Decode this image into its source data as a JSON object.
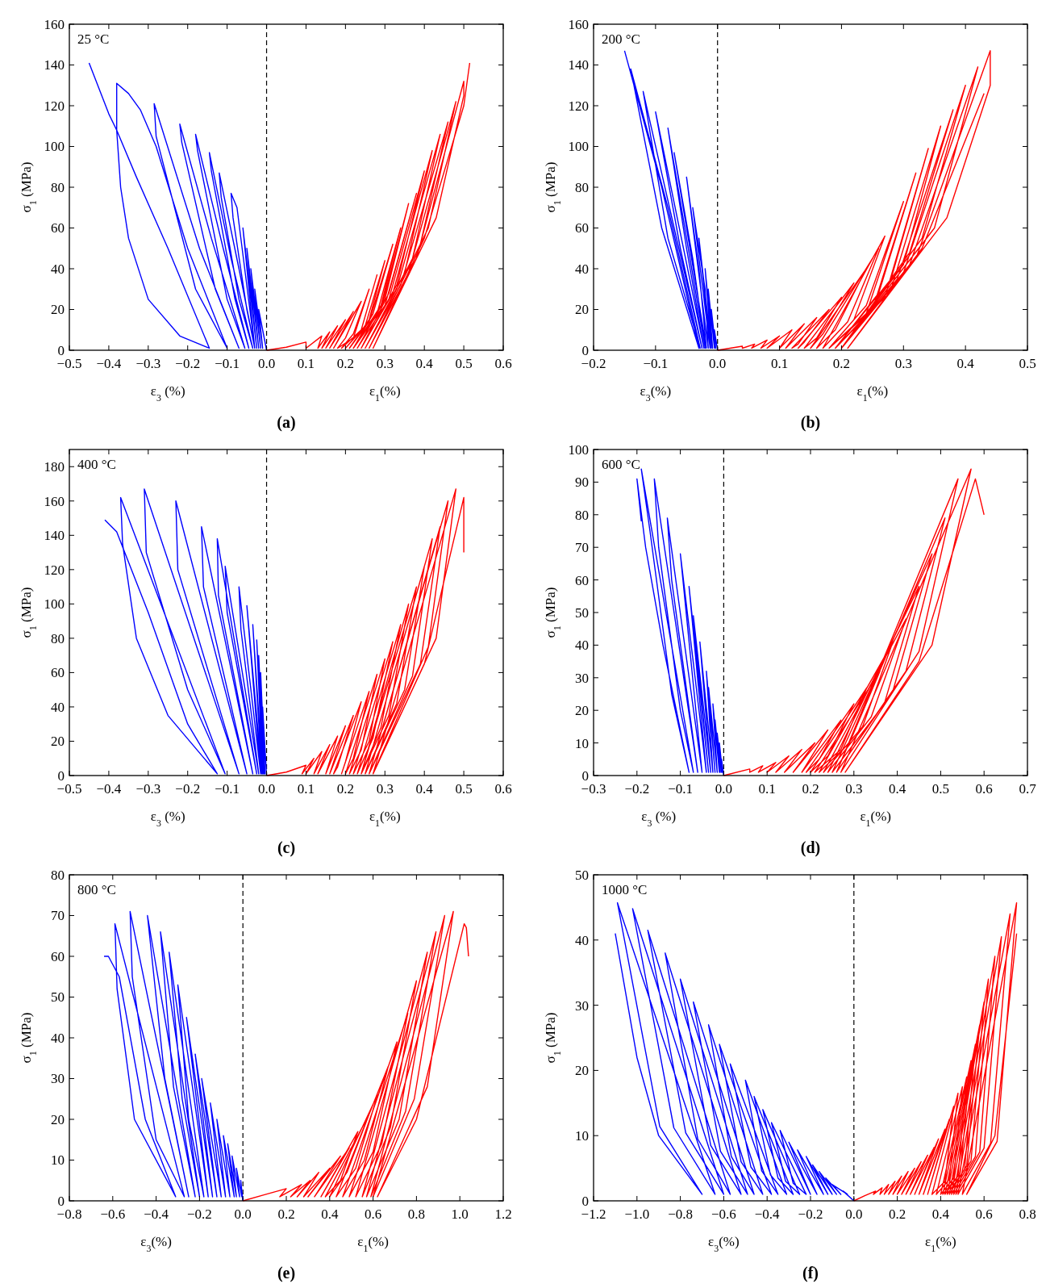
{
  "chart_data": [
    {
      "type": "line",
      "ylabel": "σ$_{1}$ (MPa)",
      "xlabel": "ε$_{1}$(%)",
      "annotations": [
        "25 °C",
        "ε$_{3}$ (%)",
        "(a)"
      ],
      "xlim": [
        -0.5,
        0.6
      ],
      "xticks": [
        {
          "value": -0.5,
          "label": "−0.5"
        },
        {
          "value": -0.4,
          "label": "−0.4"
        },
        {
          "value": -0.3,
          "label": "−0.3"
        },
        {
          "value": -0.2,
          "label": "−0.2"
        },
        {
          "value": -0.1,
          "label": "−0.1"
        },
        {
          "value": 0,
          "label": "0.0"
        },
        0.1,
        0.2,
        0.3,
        0.4,
        0.5,
        0.6
      ],
      "ylim": [
        0,
        160
      ],
      "yticks": [
        0,
        20,
        40,
        60,
        80,
        100,
        120,
        140,
        160
      ],
      "ref_lines": [
        {
          "axis": "x",
          "value": 0,
          "color": "#000000",
          "line_style": "dashed"
        }
      ],
      "series": [
        {
          "color": "#0000ff",
          "x": [
            0,
            -0.01,
            -0.02,
            -0.01,
            -0.03,
            -0.015,
            -0.04,
            -0.02,
            -0.05,
            -0.025,
            -0.06,
            -0.03,
            -0.075,
            -0.09,
            -0.085,
            -0.05,
            -0.03,
            -0.07,
            -0.12,
            -0.115,
            -0.07,
            -0.035,
            -0.09,
            -0.145,
            -0.14,
            -0.08,
            -0.045,
            -0.11,
            -0.18,
            -0.175,
            -0.1,
            -0.055,
            -0.14,
            -0.22,
            -0.215,
            -0.13,
            -0.07,
            -0.17,
            -0.285,
            -0.28,
            -0.18,
            -0.1,
            -0.2,
            -0.28,
            -0.32,
            -0.35,
            -0.38,
            -0.38,
            -0.37,
            -0.35,
            -0.3,
            -0.22,
            -0.145,
            -0.25,
            -0.33,
            -0.38,
            -0.4,
            -0.45
          ],
          "values": [
            0,
            10,
            20,
            1,
            30,
            1,
            40,
            1,
            50,
            1,
            60,
            1,
            70,
            77,
            65,
            20,
            1,
            40,
            87,
            75,
            25,
            1,
            45,
            97,
            88,
            25,
            1,
            50,
            106,
            98,
            25,
            1,
            55,
            111,
            102,
            30,
            1,
            50,
            121,
            105,
            30,
            1,
            50,
            100,
            118,
            126,
            131,
            108,
            80,
            55,
            25,
            7,
            1,
            50,
            85,
            108,
            116,
            141
          ]
        },
        {
          "color": "#ff0000",
          "x": [
            0,
            0.05,
            0.1,
            0.1,
            0.14,
            0.13,
            0.16,
            0.14,
            0.18,
            0.15,
            0.2,
            0.16,
            0.22,
            0.17,
            0.24,
            0.2,
            0.18,
            0.22,
            0.26,
            0.22,
            0.19,
            0.24,
            0.28,
            0.24,
            0.2,
            0.25,
            0.3,
            0.26,
            0.21,
            0.26,
            0.32,
            0.27,
            0.22,
            0.28,
            0.34,
            0.29,
            0.22,
            0.29,
            0.36,
            0.3,
            0.23,
            0.3,
            0.38,
            0.31,
            0.24,
            0.31,
            0.4,
            0.33,
            0.24,
            0.32,
            0.42,
            0.35,
            0.25,
            0.33,
            0.44,
            0.37,
            0.25,
            0.34,
            0.46,
            0.39,
            0.26,
            0.36,
            0.48,
            0.41,
            0.26,
            0.38,
            0.5,
            0.5,
            0.43,
            0.27,
            0.4,
            0.5,
            0.515
          ],
          "values": [
            0,
            1.5,
            4,
            1,
            7,
            1,
            9,
            1,
            12,
            1,
            15,
            1,
            19,
            1,
            24,
            6,
            1,
            6,
            30,
            8,
            1,
            10,
            37,
            10,
            1,
            12,
            44,
            15,
            1,
            14,
            52,
            18,
            1,
            18,
            60,
            22,
            1,
            20,
            72,
            25,
            1,
            22,
            77,
            28,
            1,
            25,
            88,
            32,
            1,
            28,
            98,
            38,
            1,
            30,
            106,
            45,
            1,
            32,
            112,
            52,
            1,
            38,
            122,
            60,
            1,
            45,
            132,
            125,
            65,
            1,
            55,
            120,
            141
          ]
        }
      ]
    },
    {
      "type": "line",
      "ylabel": "σ$_{1}$ (MPa)",
      "xlabel": "ε$_{1}$(%)",
      "annotations": [
        "200 °C",
        "ε$_{3}$(%)",
        "(b)"
      ],
      "xlim": [
        -0.2,
        0.5
      ],
      "xticks": [
        {
          "value": -0.2,
          "label": "−0.2"
        },
        {
          "value": -0.1,
          "label": "−0.1"
        },
        {
          "value": 0,
          "label": "0.0"
        },
        0.1,
        0.2,
        0.3,
        0.4,
        0.5
      ],
      "ylim": [
        0,
        160
      ],
      "yticks": [
        0,
        20,
        40,
        60,
        80,
        100,
        120,
        140,
        160
      ],
      "ref_lines": [
        {
          "axis": "x",
          "value": 0,
          "color": "#000000",
          "line_style": "dashed"
        }
      ],
      "series": [
        {
          "color": "#0000ff",
          "x": [
            0,
            -0.005,
            -0.003,
            -0.01,
            -0.005,
            -0.015,
            -0.008,
            -0.02,
            -0.01,
            -0.03,
            -0.012,
            -0.04,
            -0.02,
            -0.015,
            -0.05,
            -0.03,
            -0.018,
            -0.07,
            -0.04,
            -0.02,
            -0.08,
            -0.05,
            -0.022,
            -0.1,
            -0.06,
            -0.025,
            -0.07,
            -0.12,
            -0.08,
            -0.028,
            -0.08,
            -0.14,
            -0.09,
            -0.03,
            -0.09,
            -0.15
          ],
          "values": [
            0,
            10,
            1,
            20,
            1,
            30,
            1,
            40,
            1,
            55,
            1,
            70,
            30,
            1,
            85,
            40,
            1,
            97,
            45,
            1,
            109,
            50,
            1,
            117,
            50,
            1,
            60,
            127,
            55,
            1,
            70,
            138,
            60,
            1,
            80,
            147
          ]
        },
        {
          "color": "#ff0000",
          "x": [
            0,
            0.04,
            0.04,
            0.06,
            0.055,
            0.08,
            0.07,
            0.1,
            0.08,
            0.12,
            0.1,
            0.14,
            0.11,
            0.16,
            0.13,
            0.12,
            0.18,
            0.14,
            0.13,
            0.2,
            0.16,
            0.14,
            0.22,
            0.17,
            0.15,
            0.24,
            0.19,
            0.16,
            0.26,
            0.21,
            0.17,
            0.27,
            0.22,
            0.18,
            0.24,
            0.3,
            0.24,
            0.18,
            0.25,
            0.32,
            0.26,
            0.19,
            0.27,
            0.34,
            0.28,
            0.19,
            0.28,
            0.36,
            0.3,
            0.2,
            0.29,
            0.38,
            0.31,
            0.2,
            0.3,
            0.4,
            0.33,
            0.2,
            0.31,
            0.42,
            0.35,
            0.2,
            0.32,
            0.44,
            0.44,
            0.37,
            0.21,
            0.33,
            0.43
          ],
          "values": [
            0,
            2,
            1,
            3,
            1,
            5,
            1,
            7,
            1,
            10,
            1,
            13,
            1,
            16,
            3,
            1,
            20,
            4,
            1,
            26,
            6,
            1,
            33,
            8,
            1,
            40,
            10,
            1,
            50,
            14,
            1,
            56,
            15,
            1,
            18,
            73,
            22,
            1,
            20,
            87,
            28,
            1,
            26,
            99,
            35,
            1,
            30,
            110,
            42,
            1,
            35,
            118,
            48,
            1,
            38,
            130,
            55,
            1,
            42,
            139,
            60,
            1,
            45,
            147,
            130,
            65,
            1,
            50,
            126
          ]
        }
      ]
    },
    {
      "type": "line",
      "ylabel": "σ$_{1}$ (MPa)",
      "xlabel": "ε$_{1}$(%)",
      "annotations": [
        "400 °C",
        "ε$_{3}$ (%)",
        "(c)"
      ],
      "xlim": [
        -0.5,
        0.6
      ],
      "xticks": [
        {
          "value": -0.5,
          "label": "−0.5"
        },
        {
          "value": -0.4,
          "label": "−0.4"
        },
        {
          "value": -0.3,
          "label": "−0.3"
        },
        {
          "value": -0.2,
          "label": "−0.2"
        },
        {
          "value": -0.1,
          "label": "−0.1"
        },
        {
          "value": 0,
          "label": "0.0"
        },
        0.1,
        0.2,
        0.3,
        0.4,
        0.5,
        0.6
      ],
      "ylim": [
        0,
        190
      ],
      "yticks": [
        0,
        20,
        40,
        60,
        80,
        100,
        120,
        140,
        160,
        180
      ],
      "ref_lines": [
        {
          "axis": "x",
          "value": 0,
          "color": "#000000",
          "line_style": "dashed"
        }
      ],
      "series": [
        {
          "color": "#0000ff",
          "x": [
            0,
            -0.005,
            -0.01,
            -0.004,
            -0.015,
            -0.006,
            -0.02,
            -0.008,
            -0.025,
            -0.01,
            -0.035,
            -0.012,
            -0.05,
            -0.015,
            -0.07,
            -0.065,
            -0.02,
            -0.105,
            -0.1,
            -0.025,
            -0.125,
            -0.122,
            -0.035,
            -0.165,
            -0.16,
            -0.05,
            -0.23,
            -0.225,
            -0.07,
            -0.31,
            -0.305,
            -0.2,
            -0.105,
            -0.37,
            -0.365,
            -0.33,
            -0.25,
            -0.125,
            -0.2,
            -0.3,
            -0.38,
            -0.41
          ],
          "values": [
            0,
            20,
            40,
            1,
            60,
            1,
            70,
            1,
            79,
            1,
            88,
            1,
            99,
            1,
            110,
            85,
            1,
            122,
            95,
            1,
            138,
            105,
            1,
            145,
            110,
            1,
            160,
            120,
            1,
            167,
            130,
            50,
            1,
            162,
            135,
            80,
            35,
            1,
            30,
            95,
            142,
            149
          ]
        },
        {
          "color": "#ff0000",
          "x": [
            0,
            0.05,
            0.1,
            0.09,
            0.12,
            0.1,
            0.14,
            0.12,
            0.16,
            0.13,
            0.18,
            0.15,
            0.2,
            0.16,
            0.22,
            0.18,
            0.17,
            0.24,
            0.2,
            0.19,
            0.26,
            0.22,
            0.2,
            0.28,
            0.24,
            0.21,
            0.3,
            0.26,
            0.22,
            0.32,
            0.27,
            0.23,
            0.34,
            0.29,
            0.24,
            0.36,
            0.31,
            0.24,
            0.38,
            0.33,
            0.25,
            0.4,
            0.35,
            0.25,
            0.42,
            0.37,
            0.26,
            0.44,
            0.39,
            0.26,
            0.46,
            0.41,
            0.27,
            0.48,
            0.43,
            0.27,
            0.4,
            0.5,
            0.5
          ],
          "values": [
            0,
            2,
            6,
            1,
            10,
            1,
            14,
            1,
            18,
            1,
            23,
            1,
            29,
            1,
            35,
            5,
            1,
            43,
            8,
            1,
            49,
            10,
            1,
            59,
            15,
            1,
            68,
            20,
            1,
            78,
            22,
            1,
            88,
            28,
            1,
            100,
            35,
            1,
            110,
            42,
            1,
            122,
            50,
            1,
            138,
            58,
            1,
            145,
            65,
            1,
            160,
            75,
            1,
            167,
            80,
            1,
            65,
            162,
            130
          ]
        }
      ]
    },
    {
      "type": "line",
      "ylabel": "σ$_{1}$ (MPa)",
      "xlabel": "ε$_{1}$(%)",
      "annotations": [
        "600 °C",
        "ε$_{3}$ (%)",
        "(d)"
      ],
      "xlim": [
        -0.3,
        0.7
      ],
      "xticks": [
        {
          "value": -0.3,
          "label": "−0.3"
        },
        {
          "value": -0.2,
          "label": "−0.2"
        },
        {
          "value": -0.1,
          "label": "−0.1"
        },
        {
          "value": 0,
          "label": "0.0"
        },
        0.1,
        0.2,
        0.3,
        0.4,
        0.5,
        0.6,
        0.7
      ],
      "ylim": [
        0,
        100
      ],
      "yticks": [
        0,
        10,
        20,
        30,
        40,
        50,
        60,
        70,
        80,
        90,
        100
      ],
      "ref_lines": [
        {
          "axis": "x",
          "value": 0,
          "color": "#000000",
          "line_style": "dashed"
        }
      ],
      "series": [
        {
          "color": "#0000ff",
          "x": [
            0,
            -0.005,
            -0.003,
            -0.01,
            -0.005,
            -0.015,
            -0.008,
            -0.02,
            -0.01,
            -0.025,
            -0.015,
            -0.035,
            -0.02,
            -0.04,
            -0.025,
            -0.055,
            -0.03,
            -0.07,
            -0.035,
            -0.08,
            -0.04,
            -0.1,
            -0.05,
            -0.13,
            -0.12,
            -0.06,
            -0.16,
            -0.15,
            -0.1,
            -0.07,
            -0.19,
            -0.17,
            -0.12,
            -0.08,
            -0.14,
            -0.18,
            -0.2,
            -0.19
          ],
          "values": [
            0,
            5,
            1,
            10,
            1,
            13,
            1,
            17,
            1,
            22,
            1,
            27,
            1,
            32,
            1,
            41,
            1,
            49,
            1,
            58,
            1,
            68,
            1,
            79,
            60,
            1,
            91,
            70,
            20,
            1,
            94,
            75,
            25,
            1,
            40,
            70,
            91,
            78
          ]
        },
        {
          "color": "#ff0000",
          "x": [
            0,
            0.06,
            0.06,
            0.09,
            0.08,
            0.12,
            0.1,
            0.15,
            0.12,
            0.18,
            0.14,
            0.21,
            0.16,
            0.24,
            0.18,
            0.27,
            0.22,
            0.19,
            0.3,
            0.24,
            0.2,
            0.33,
            0.27,
            0.21,
            0.36,
            0.29,
            0.22,
            0.39,
            0.32,
            0.23,
            0.42,
            0.34,
            0.24,
            0.45,
            0.37,
            0.25,
            0.48,
            0.39,
            0.26,
            0.51,
            0.42,
            0.26,
            0.54,
            0.45,
            0.27,
            0.57,
            0.48,
            0.28,
            0.45,
            0.58,
            0.6
          ],
          "values": [
            0,
            2,
            1,
            3,
            1,
            4,
            1,
            6,
            1,
            8,
            1,
            10,
            1,
            14,
            1,
            17,
            5,
            1,
            22,
            6,
            1,
            27,
            8,
            1,
            32,
            10,
            1,
            41,
            15,
            1,
            48,
            18,
            1,
            58,
            22,
            1,
            68,
            26,
            1,
            79,
            32,
            1,
            91,
            38,
            1,
            94,
            40,
            1,
            35,
            91,
            80
          ]
        }
      ]
    },
    {
      "type": "line",
      "ylabel": "σ$_{1}$ (MPa)",
      "xlabel": "ε$_{1}$(%)",
      "annotations": [
        "800 °C",
        "ε$_{3}$(%)",
        "(e)"
      ],
      "xlim": [
        -0.8,
        1.2
      ],
      "xticks": [
        {
          "value": -0.8,
          "label": "−0.8"
        },
        {
          "value": -0.6,
          "label": "−0.6"
        },
        {
          "value": -0.4,
          "label": "−0.4"
        },
        {
          "value": -0.2,
          "label": "−0.2"
        },
        {
          "value": 0,
          "label": "0.0"
        },
        0.2,
        0.4,
        0.6,
        0.8,
        {
          "value": 1,
          "label": "1.0"
        },
        1.2
      ],
      "ylim": [
        0,
        80
      ],
      "yticks": [
        0,
        10,
        20,
        30,
        40,
        50,
        60,
        70,
        80
      ],
      "ref_lines": [
        {
          "axis": "x",
          "value": 0,
          "color": "#000000",
          "line_style": "dashed"
        }
      ],
      "series": [
        {
          "color": "#0000ff",
          "x": [
            0,
            -0.01,
            -0.005,
            -0.03,
            -0.015,
            -0.05,
            -0.03,
            -0.07,
            -0.04,
            -0.09,
            -0.06,
            -0.12,
            -0.08,
            -0.15,
            -0.1,
            -0.19,
            -0.12,
            -0.22,
            -0.14,
            -0.26,
            -0.16,
            -0.3,
            -0.25,
            -0.18,
            -0.34,
            -0.28,
            -0.2,
            -0.38,
            -0.32,
            -0.22,
            -0.44,
            -0.36,
            -0.25,
            -0.52,
            -0.51,
            -0.4,
            -0.27,
            -0.59,
            -0.58,
            -0.5,
            -0.31,
            -0.45,
            -0.57,
            -0.62,
            -0.64
          ],
          "values": [
            0,
            5,
            1,
            8,
            1,
            11,
            1,
            14,
            1,
            16,
            1,
            20,
            1,
            24,
            1,
            30,
            1,
            36,
            1,
            45,
            1,
            53,
            20,
            1,
            61,
            25,
            1,
            66,
            28,
            1,
            70,
            30,
            1,
            71,
            55,
            15,
            1,
            68,
            52,
            20,
            1,
            20,
            55,
            60,
            60
          ]
        },
        {
          "color": "#ff0000",
          "x": [
            0,
            0.1,
            0.2,
            0.17,
            0.27,
            0.22,
            0.31,
            0.25,
            0.35,
            0.28,
            0.4,
            0.3,
            0.45,
            0.33,
            0.49,
            0.36,
            0.53,
            0.45,
            0.38,
            0.58,
            0.48,
            0.4,
            0.62,
            0.52,
            0.43,
            0.67,
            0.56,
            0.46,
            0.71,
            0.6,
            0.49,
            0.76,
            0.64,
            0.52,
            0.8,
            0.68,
            0.55,
            0.85,
            0.72,
            0.57,
            0.89,
            0.75,
            0.59,
            0.93,
            0.79,
            0.6,
            0.97,
            0.85,
            0.62,
            0.8,
            1.02,
            1.03,
            1.04
          ],
          "values": [
            0,
            1.5,
            3,
            1,
            4,
            1,
            5,
            1,
            7,
            1,
            8,
            1,
            11,
            1,
            13,
            1,
            17,
            5,
            1,
            21,
            7,
            1,
            26,
            8,
            1,
            33,
            10,
            1,
            39,
            12,
            1,
            46,
            14,
            1,
            54,
            18,
            1,
            61,
            20,
            1,
            66,
            22,
            1,
            70,
            25,
            1,
            71,
            28,
            1,
            20,
            68,
            67,
            60
          ]
        }
      ]
    },
    {
      "type": "line",
      "ylabel": "σ$_{1}$ (MPa)",
      "xlabel": "ε$_{1}$(%)",
      "annotations": [
        "1000 °C",
        "ε$_{3}$(%)",
        "(f)"
      ],
      "xlim": [
        -1.2,
        0.8
      ],
      "xticks": [
        {
          "value": -1.2,
          "label": "−1.2"
        },
        {
          "value": -1,
          "label": "−1.0"
        },
        {
          "value": -0.8,
          "label": "−0.8"
        },
        {
          "value": -0.6,
          "label": "−0.6"
        },
        {
          "value": -0.4,
          "label": "−0.4"
        },
        {
          "value": -0.2,
          "label": "−0.2"
        },
        {
          "value": 0,
          "label": "0.0"
        },
        0.2,
        0.4,
        0.6,
        0.8
      ],
      "ylim": [
        0,
        50
      ],
      "yticks": [
        0,
        10,
        20,
        30,
        40,
        50
      ],
      "ref_lines": [
        {
          "axis": "x",
          "value": 0,
          "color": "#000000",
          "line_style": "dashed"
        }
      ],
      "series": [
        {
          "color": "#0000ff",
          "x": [
            0,
            -0.05,
            -0.03,
            -0.1,
            -0.06,
            -0.13,
            -0.08,
            -0.16,
            -0.1,
            -0.19,
            -0.12,
            -0.22,
            -0.14,
            -0.26,
            -0.17,
            -0.3,
            -0.2,
            -0.34,
            -0.28,
            -0.22,
            -0.38,
            -0.315,
            -0.25,
            -0.42,
            -0.35,
            -0.28,
            -0.46,
            -0.385,
            -0.31,
            -0.5,
            -0.425,
            -0.35,
            -0.57,
            -0.475,
            -0.38,
            -0.62,
            -0.52,
            -0.42,
            -0.67,
            -0.565,
            -0.46,
            -0.74,
            -0.615,
            -0.49,
            -0.8,
            -0.66,
            -0.52,
            -0.87,
            -0.72,
            -0.57,
            -0.95,
            -0.775,
            -0.6,
            -1.02,
            -0.83,
            -0.64,
            -1.09,
            -0.895,
            -0.7,
            -0.9,
            -1,
            -1.1
          ],
          "values": [
            0,
            1.5,
            1,
            2.5,
            1,
            3.5,
            1,
            4.5,
            1,
            5.5,
            1,
            6.8,
            1,
            7.8,
            1,
            9,
            1,
            10.8,
            2.7,
            1,
            12,
            3,
            1,
            14,
            3.5,
            1,
            16,
            4,
            1,
            18.5,
            4.6,
            1,
            21,
            5.2,
            1,
            24,
            6,
            1,
            27,
            6.8,
            1,
            30.5,
            7.6,
            1,
            34,
            8.5,
            1,
            38,
            9.5,
            1,
            41.5,
            10.4,
            1,
            44.8,
            11.2,
            1,
            45.7,
            11.4,
            1,
            10,
            22,
            41
          ]
        },
        {
          "color": "#ff0000",
          "x": [
            0,
            0.05,
            0.1,
            0.09,
            0.13,
            0.12,
            0.16,
            0.14,
            0.19,
            0.16,
            0.22,
            0.18,
            0.25,
            0.2,
            0.28,
            0.22,
            0.31,
            0.24,
            0.34,
            0.26,
            0.37,
            0.28,
            0.39,
            0.3,
            0.42,
            0.32,
            0.44,
            0.34,
            0.46,
            0.42,
            0.36,
            0.48,
            0.44,
            0.38,
            0.5,
            0.46,
            0.4,
            0.52,
            0.48,
            0.41,
            0.54,
            0.49,
            0.42,
            0.56,
            0.51,
            0.43,
            0.58,
            0.52,
            0.44,
            0.6,
            0.54,
            0.45,
            0.62,
            0.56,
            0.46,
            0.65,
            0.58,
            0.47,
            0.68,
            0.6,
            0.48,
            0.72,
            0.63,
            0.5,
            0.75,
            0.66,
            0.52,
            0.65,
            0.75
          ],
          "values": [
            0,
            0.8,
            1.5,
            1,
            2,
            1,
            2.5,
            1,
            3,
            1,
            3.8,
            1,
            4.5,
            1,
            5,
            1,
            6,
            1,
            7,
            1,
            8.2,
            1,
            9.5,
            1,
            11,
            1,
            12.5,
            1,
            14.5,
            3,
            1,
            16.5,
            3.3,
            1,
            17.5,
            3.5,
            1,
            19,
            3.8,
            1,
            21.5,
            4.3,
            1,
            24,
            4.8,
            1,
            27,
            5.4,
            1,
            30.5,
            6.1,
            1,
            34,
            6.8,
            1,
            37.5,
            7.5,
            1,
            40.5,
            8.1,
            1,
            44,
            8.8,
            1,
            45.7,
            9.1,
            1,
            10,
            41
          ]
        }
      ]
    }
  ]
}
